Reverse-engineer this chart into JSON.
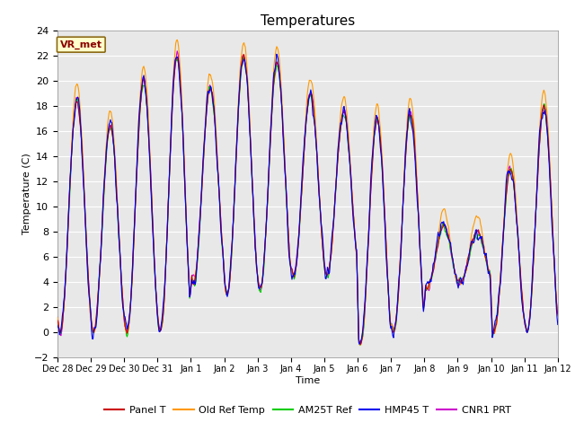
{
  "title": "Temperatures",
  "xlabel": "Time",
  "ylabel": "Temperature (C)",
  "ylim": [
    -2,
    24
  ],
  "annotation": "VR_met",
  "legend": [
    "Panel T",
    "Old Ref Temp",
    "AM25T Ref",
    "HMP45 T",
    "CNR1 PRT"
  ],
  "colors": [
    "#cc0000",
    "#ff9900",
    "#00cc00",
    "#0000ee",
    "#cc00cc"
  ],
  "xtick_labels": [
    "Dec 28",
    "Dec 29",
    "Dec 30",
    "Dec 31",
    "Jan 1",
    "Jan 2",
    "Jan 3",
    "Jan 4",
    "Jan 5",
    "Jan 6",
    "Jan 7",
    "Jan 8",
    "Jan 9",
    "Jan 10",
    "Jan 11",
    "Jan 12"
  ],
  "bg_color": "#e8e8e8",
  "grid_color": "#ffffff",
  "fig_bg": "#ffffff"
}
